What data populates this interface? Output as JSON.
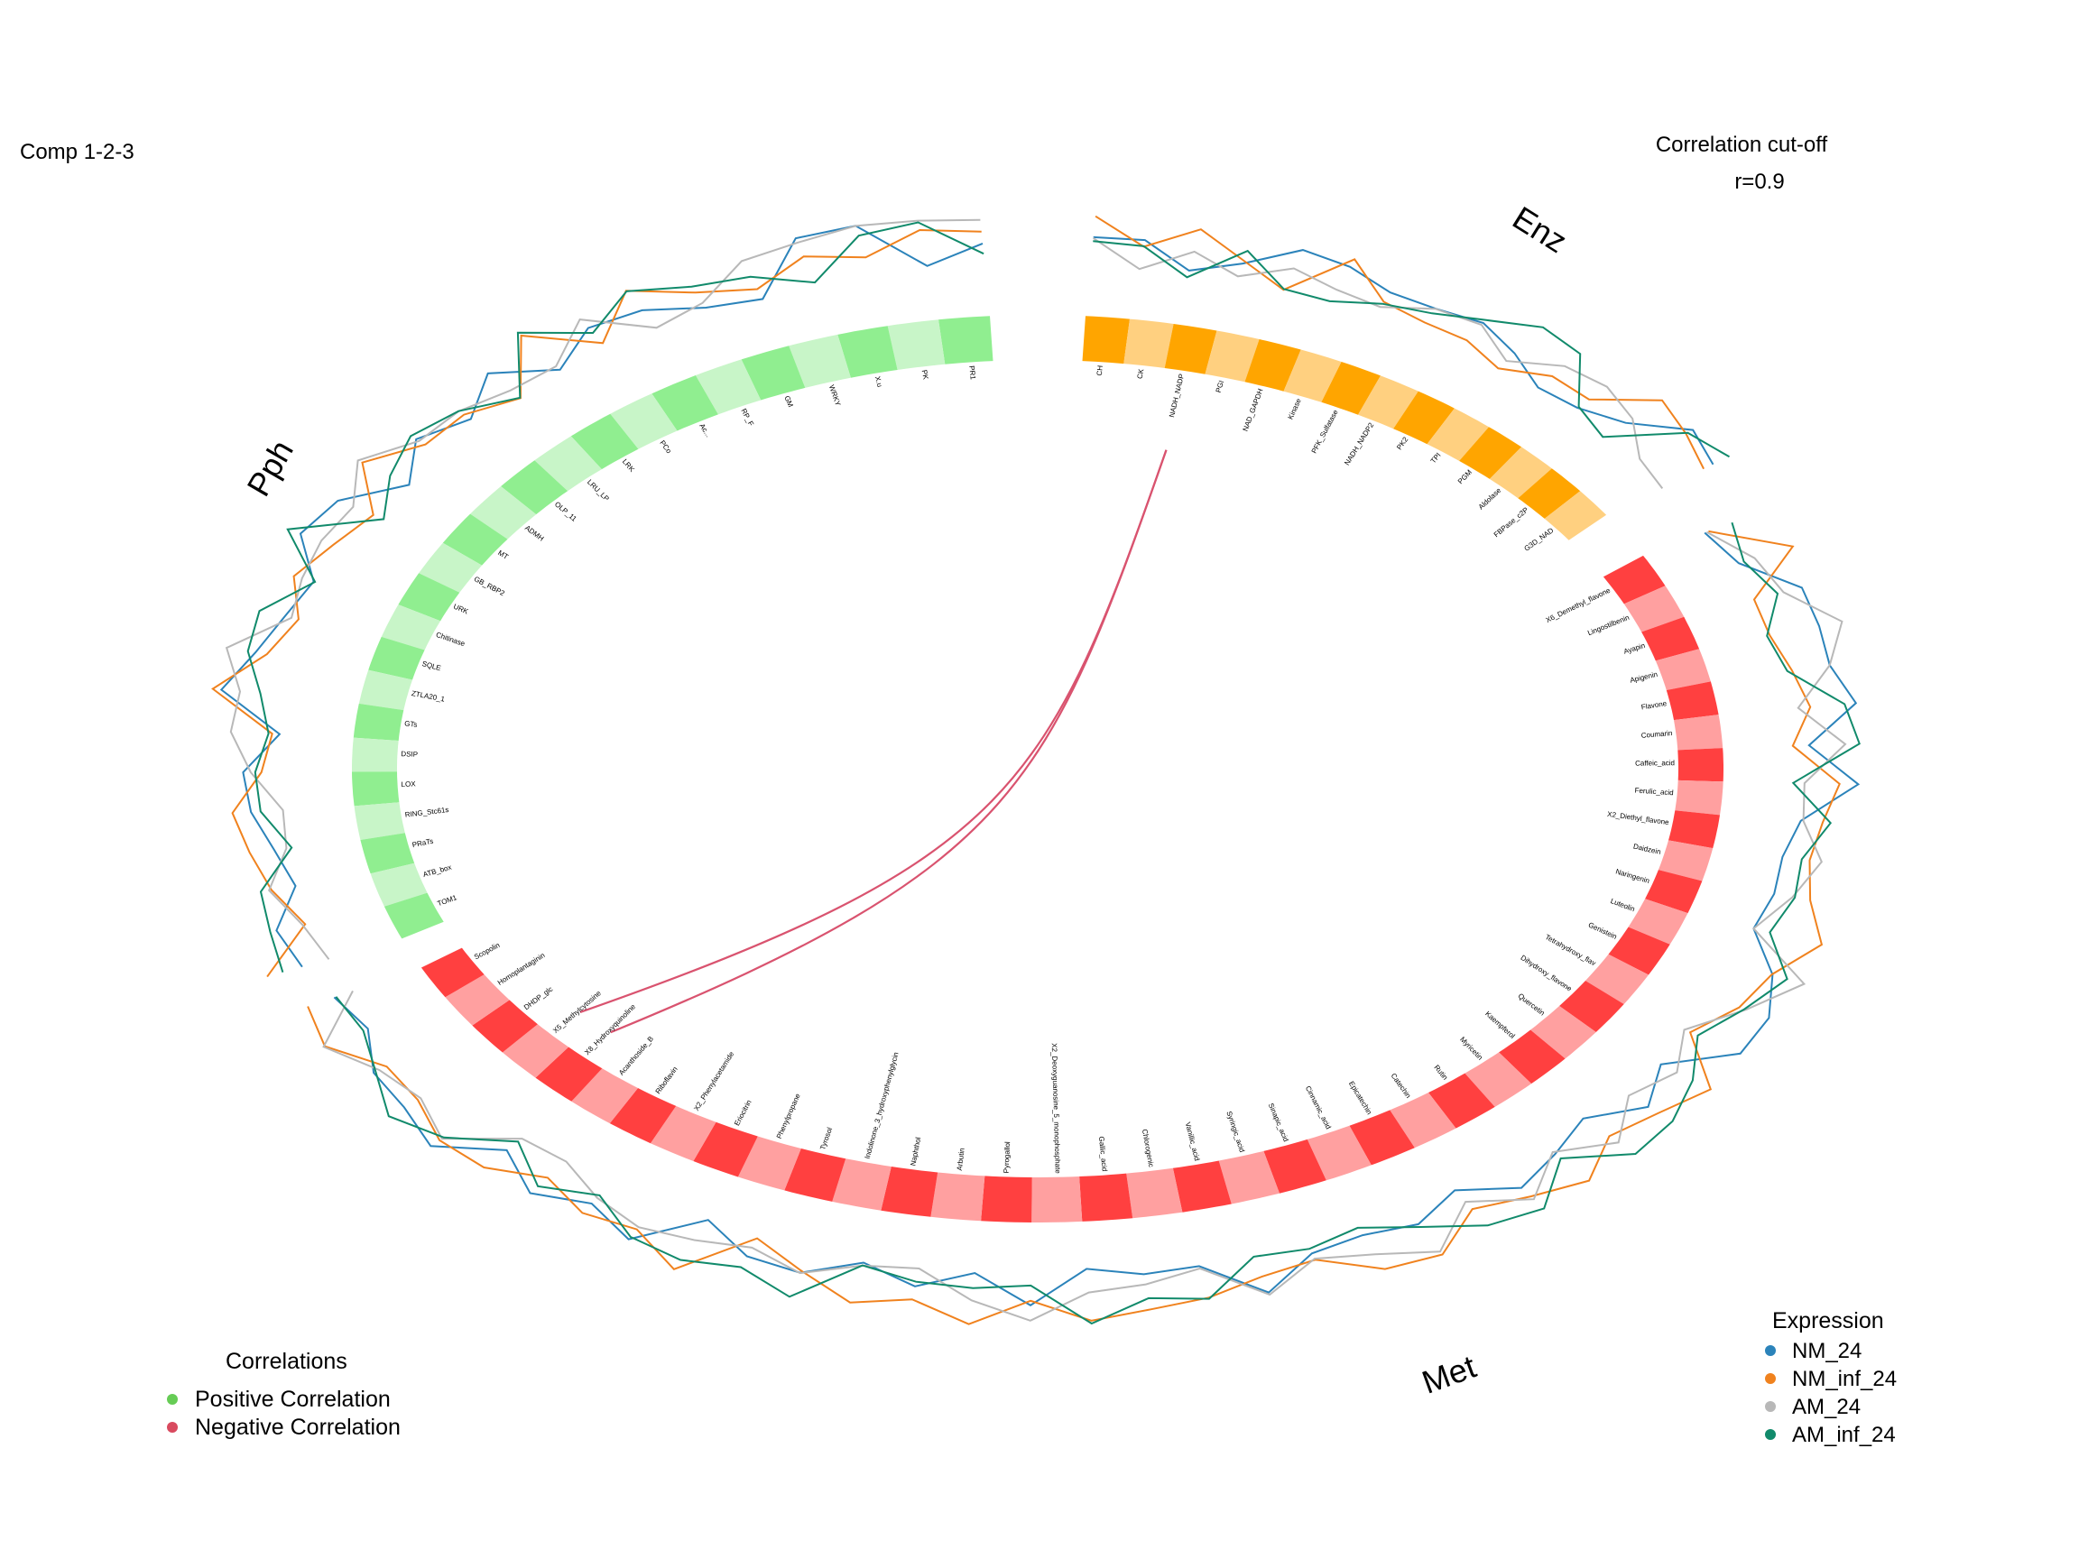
{
  "comp_label": "Comp 1-2-3",
  "cutoff": {
    "title": "Correlation cut-off",
    "value": "r=0.9"
  },
  "groups": [
    {
      "name": "Pph",
      "colors": [
        "#90ee90",
        "#c8f5c8"
      ],
      "items": [
        "PR1",
        "PK",
        "X.u",
        "WRKY",
        "GM",
        "RP_F",
        "Ac...",
        "PCo",
        "LRK",
        "LRU_LP",
        "OLP_11",
        "ADMH",
        "MT",
        "GB_RBP2",
        "URK",
        "Chitinase",
        "SQLE",
        "ZTLA20_1",
        "GTs",
        "DSIP",
        "LOX",
        "RING_Stc61s",
        "PRaTs",
        "ATB_box",
        "TOM1"
      ]
    },
    {
      "name": "Met",
      "colors": [
        "#ff4040",
        "#ffa0a0"
      ],
      "items": [
        "X6_Demethyl_flavone",
        "Lingostilbenin",
        "Ayapin",
        "Apigenin",
        "Flavone",
        "Coumarin",
        "Caffeic_acid",
        "Ferulic_acid",
        "X2_Diethyl_flavone",
        "Daidzein",
        "Naringenin",
        "Luteolin",
        "Genistein",
        "Tetrahydroxy_flav",
        "Dihydroxy_flavone",
        "Quercetin",
        "Kaempferol",
        "Myricetin",
        "Rutin",
        "Catechin",
        "Epicatechin",
        "Cinnamic_acid",
        "Sinapic_acid",
        "Syringic_acid",
        "Vanillic_acid",
        "Chlorogenic",
        "Gallic_acid",
        "X2_Deoxyguanosine_5_monophosphate",
        "Pyrogallol",
        "Arbutin",
        "Naphthol",
        "Indolinone_3_hydroxyphenylglycin",
        "Tyrosol",
        "Phenylpropane",
        "Eriocitrin",
        "X2_Phenylacetamide",
        "Riboflavin",
        "Acanthoside_B",
        "X8_Hydroxyquinoline",
        "X5_Methylcytosine",
        "DHDP_glc",
        "Homoplantaginin",
        "Scopolin"
      ]
    },
    {
      "name": "Enz",
      "colors": [
        "#ffa500",
        "#ffd080"
      ],
      "items": [
        "CH",
        "CK",
        "NADH_NADP",
        "PGI",
        "NAD_GAPDH",
        "Kinase",
        "PFK_Sulfatase",
        "NADH_NADP2",
        "PK2",
        "TPI",
        "PGM",
        "Aldolase",
        "FBPase_c2P",
        "G3D_NAD"
      ]
    }
  ],
  "links": [
    {
      "from": "NADH_NADP",
      "to": "X5_Methylcytosine",
      "color": "#d9536f"
    },
    {
      "from": "NADH_NADP",
      "to": "X8_Hydroxyquinoline",
      "color": "#d9536f"
    }
  ],
  "expression": {
    "title": "Expression",
    "series": [
      {
        "name": "NM_24",
        "color": "#2b83ba"
      },
      {
        "name": "NM_inf_24",
        "color": "#f0821e"
      },
      {
        "name": "AM_24",
        "color": "#b8b8b8"
      },
      {
        "name": "AM_inf_24",
        "color": "#118a6b"
      }
    ]
  },
  "correlations": {
    "title": "Correlations",
    "items": [
      {
        "label": "Positive Correlation",
        "color": "#66cc55"
      },
      {
        "label": "Negative Correlation",
        "color": "#d94a5f"
      }
    ]
  }
}
